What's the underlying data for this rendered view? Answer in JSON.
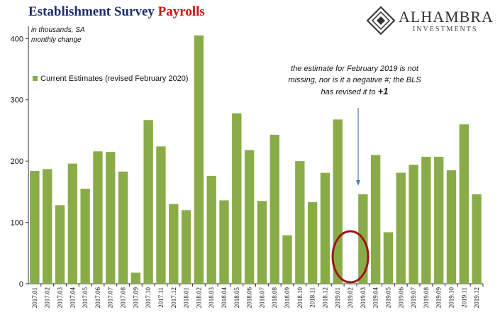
{
  "header": {
    "title_part1": "Establishment Survey",
    "title_part2": "Payrolls",
    "units_line1": "in thousands, SA",
    "units_line2": "monthly change"
  },
  "brand": {
    "name": "ALHAMBRA",
    "subtitle": "INVESTMENTS"
  },
  "annotation": {
    "text": "the estimate for February 2019 is not missing, nor is it a negative #; the BLS has revised it to",
    "value": "+1"
  },
  "colors": {
    "bar": "#8aac48",
    "circle": "#a01414",
    "arrow": "#4f7fb8",
    "title_blue": "#1f2d6b",
    "title_red": "#cc1111"
  },
  "chart_data": {
    "type": "bar",
    "categories": [
      "2017.01",
      "2017.02",
      "2017.03",
      "2017.04",
      "2017.05",
      "2017.06",
      "2017.07",
      "2017.08",
      "2017.09",
      "2017.10",
      "2017.11",
      "2017.12",
      "2018.01",
      "2018.02",
      "2018.03",
      "2018.04",
      "2018.05",
      "2018.06",
      "2018.07",
      "2018.08",
      "2018.09",
      "2018.10",
      "2018.11",
      "2018.12",
      "2019.01",
      "2019.02",
      "2019.03",
      "2019.04",
      "2019.05",
      "2019.06",
      "2019.07",
      "2019.08",
      "2019.09",
      "2019.10",
      "2019.11",
      "2019.12"
    ],
    "series": [
      {
        "name": "Current Estimates (revised February 2020)",
        "values": [
          184,
          187,
          128,
          196,
          155,
          216,
          215,
          183,
          18,
          267,
          224,
          130,
          120,
          405,
          176,
          136,
          278,
          218,
          135,
          243,
          79,
          200,
          133,
          181,
          268,
          1,
          146,
          210,
          84,
          181,
          194,
          207,
          207,
          185,
          260,
          146
        ]
      }
    ],
    "yticks": [
      "0",
      "100",
      "200",
      "300",
      "400"
    ],
    "ylim": [
      0,
      420
    ],
    "legend_position": "top-left",
    "grid": false
  }
}
